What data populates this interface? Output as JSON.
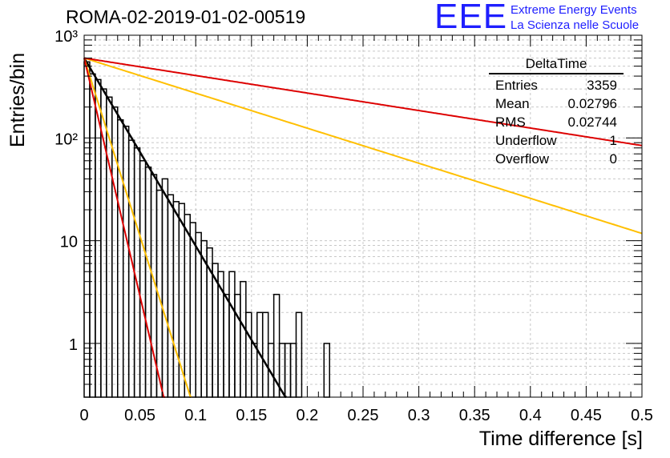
{
  "title": "ROMA-02-2019-01-02-00519",
  "logo": {
    "text": "EEE",
    "line1": "Extreme Energy Events",
    "line2": "La Scienza nelle Scuole",
    "color": "#1f1fff"
  },
  "stats": {
    "name": "DeltaTime",
    "rows": [
      {
        "label": "Entries",
        "value": "3359"
      },
      {
        "label": "Mean",
        "value": "0.02796"
      },
      {
        "label": "RMS",
        "value": "0.02744"
      },
      {
        "label": "Underflow",
        "value": "1"
      },
      {
        "label": "Overflow",
        "value": "0"
      }
    ]
  },
  "chart_data": {
    "type": "histogram",
    "xlabel": "Time difference [s]",
    "ylabel": "Entries/bin",
    "xlim": [
      0,
      0.5
    ],
    "ylim": [
      0.3,
      1000
    ],
    "yscale": "log",
    "grid": true,
    "x_ticks": [
      0,
      0.05,
      0.1,
      0.15,
      0.2,
      0.25,
      0.3,
      0.35,
      0.4,
      0.45,
      0.5
    ],
    "x_tick_labels": [
      "0",
      "0.05",
      "0.1",
      "0.15",
      "0.2",
      "0.25",
      "0.3",
      "0.35",
      "0.4",
      "0.45",
      "0.5"
    ],
    "y_ticks": [
      1,
      10,
      100,
      1000
    ],
    "y_tick_labels": [
      "1",
      "10",
      "10²",
      "10³"
    ],
    "bin_width": 0.005,
    "histogram": {
      "color": "#000000",
      "bins": [
        {
          "x0": 0.0,
          "y": 550
        },
        {
          "x0": 0.005,
          "y": 420
        },
        {
          "x0": 0.01,
          "y": 370
        },
        {
          "x0": 0.015,
          "y": 300
        },
        {
          "x0": 0.02,
          "y": 250
        },
        {
          "x0": 0.025,
          "y": 200
        },
        {
          "x0": 0.03,
          "y": 150
        },
        {
          "x0": 0.035,
          "y": 130
        },
        {
          "x0": 0.04,
          "y": 95
        },
        {
          "x0": 0.045,
          "y": 80
        },
        {
          "x0": 0.05,
          "y": 60
        },
        {
          "x0": 0.055,
          "y": 52
        },
        {
          "x0": 0.06,
          "y": 44
        },
        {
          "x0": 0.065,
          "y": 31
        },
        {
          "x0": 0.07,
          "y": 40
        },
        {
          "x0": 0.075,
          "y": 28
        },
        {
          "x0": 0.08,
          "y": 24
        },
        {
          "x0": 0.085,
          "y": 23
        },
        {
          "x0": 0.09,
          "y": 18
        },
        {
          "x0": 0.095,
          "y": 15
        },
        {
          "x0": 0.1,
          "y": 12
        },
        {
          "x0": 0.105,
          "y": 10
        },
        {
          "x0": 0.11,
          "y": 8.5
        },
        {
          "x0": 0.115,
          "y": 6
        },
        {
          "x0": 0.12,
          "y": 5
        },
        {
          "x0": 0.125,
          "y": 3
        },
        {
          "x0": 0.13,
          "y": 5
        },
        {
          "x0": 0.135,
          "y": 3
        },
        {
          "x0": 0.14,
          "y": 4
        },
        {
          "x0": 0.145,
          "y": 2
        },
        {
          "x0": 0.15,
          "y": 1
        },
        {
          "x0": 0.155,
          "y": 2
        },
        {
          "x0": 0.16,
          "y": 2
        },
        {
          "x0": 0.165,
          "y": 1
        },
        {
          "x0": 0.17,
          "y": 3
        },
        {
          "x0": 0.175,
          "y": 1
        },
        {
          "x0": 0.18,
          "y": 1
        },
        {
          "x0": 0.185,
          "y": 1
        },
        {
          "x0": 0.19,
          "y": 2
        },
        {
          "x0": 0.195,
          "y": 0
        },
        {
          "x0": 0.2,
          "y": 0
        },
        {
          "x0": 0.205,
          "y": 0
        },
        {
          "x0": 0.21,
          "y": 0
        },
        {
          "x0": 0.215,
          "y": 1
        }
      ]
    },
    "series": [
      {
        "color": "#000000",
        "line_width": 2.5,
        "exp": {
          "y0": 600,
          "tau": 0.02374
        }
      },
      {
        "color": "#ffbf00",
        "line_width": 2,
        "exp": {
          "y0": 600,
          "tau": 0.01254
        }
      },
      {
        "color": "#ffbf00",
        "line_width": 2,
        "exp": {
          "y0": 600,
          "tau": 0.1272
        }
      },
      {
        "color": "#dd0000",
        "line_width": 2,
        "exp": {
          "y0": 600,
          "tau": 0.00938
        }
      },
      {
        "color": "#dd0000",
        "line_width": 2,
        "exp": {
          "y0": 600,
          "tau": 0.2549
        }
      }
    ]
  }
}
